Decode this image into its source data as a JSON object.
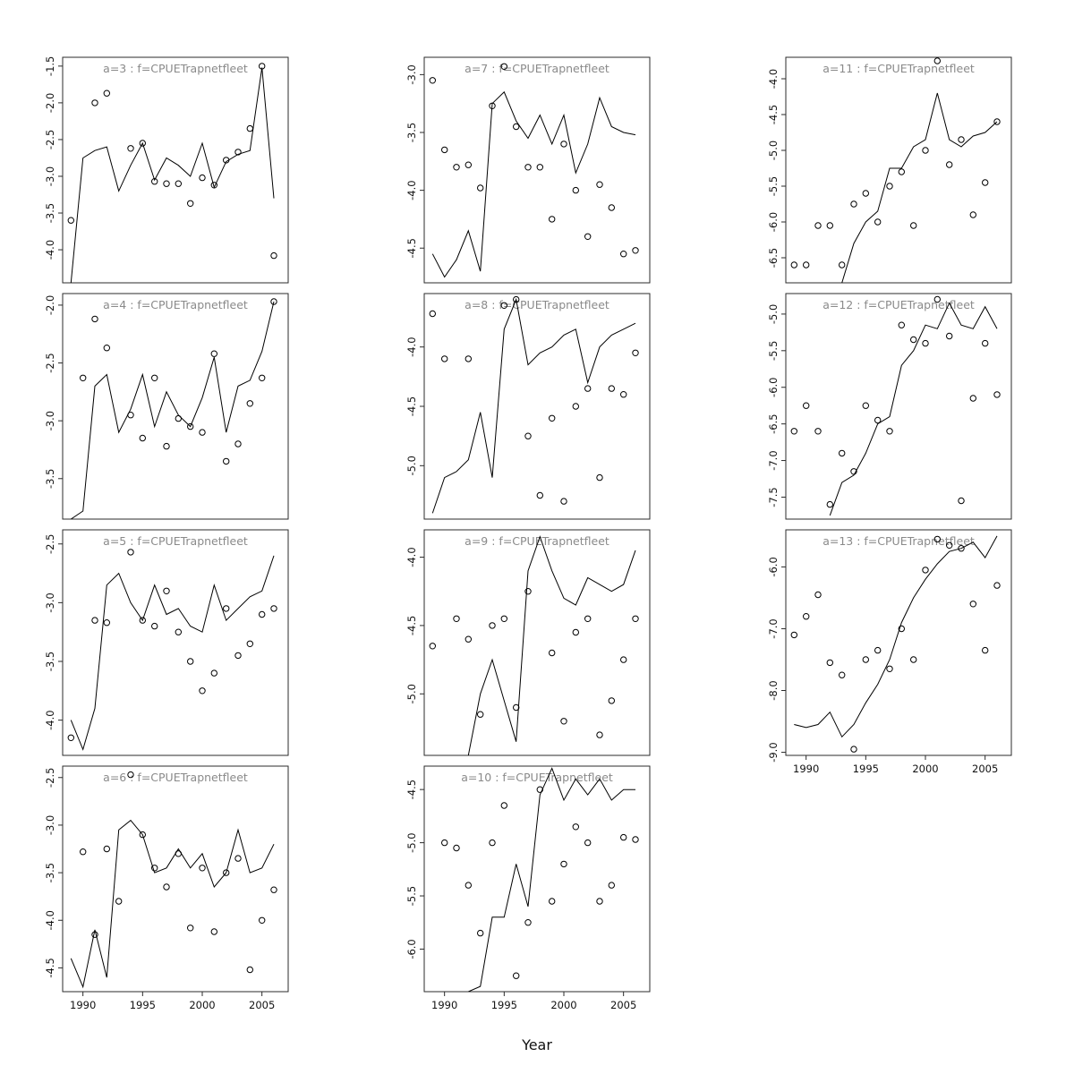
{
  "figure": {
    "xlabel": "Year",
    "xticks": [
      1990,
      1995,
      2000,
      2005
    ],
    "xlim": [
      1988.3,
      2007.2
    ],
    "colors": {
      "line": "#000000",
      "point": "#000000",
      "title": "#8a8a8a",
      "box": "#2b2b2b",
      "tick_text": "#111111"
    }
  },
  "chart_data": [
    {
      "id": "a3",
      "type": "scatter+line",
      "title": "a=3  :  f=CPUETrapnetfleet",
      "ylim": [
        -4.45,
        -1.38
      ],
      "yticks": [
        -4.0,
        -3.5,
        -3.0,
        -2.5,
        -2.0,
        -1.5
      ],
      "x_axis_labels": false,
      "line": {
        "x": [
          1989,
          1990,
          1991,
          1992,
          1993,
          1994,
          1995,
          1996,
          1997,
          1998,
          1999,
          2000,
          2001,
          2002,
          2003,
          2004,
          2005,
          2006
        ],
        "y": [
          -4.45,
          -2.75,
          -2.65,
          -2.6,
          -3.2,
          -2.85,
          -2.55,
          -3.05,
          -2.75,
          -2.85,
          -3.0,
          -2.55,
          -3.15,
          -2.8,
          -2.7,
          -2.65,
          -1.52,
          -3.3
        ]
      },
      "points": {
        "x": [
          1989,
          1991,
          1992,
          1994,
          1995,
          1996,
          1997,
          1998,
          1999,
          2000,
          2001,
          2002,
          2003,
          2004,
          2005,
          2006
        ],
        "y": [
          -3.6,
          -2.0,
          -1.87,
          -2.62,
          -2.55,
          -3.07,
          -3.1,
          -3.1,
          -3.37,
          -3.02,
          -3.12,
          -2.78,
          -2.67,
          -2.35,
          -1.5,
          -4.08
        ]
      }
    },
    {
      "id": "a4",
      "type": "scatter+line",
      "title": "a=4  :  f=CPUETrapnetfleet",
      "ylim": [
        -3.85,
        -1.9
      ],
      "yticks": [
        -3.5,
        -3.0,
        -2.5,
        -2.0
      ],
      "x_axis_labels": false,
      "line": {
        "x": [
          1989,
          1990,
          1991,
          1992,
          1993,
          1994,
          1995,
          1996,
          1997,
          1998,
          1999,
          2000,
          2001,
          2002,
          2003,
          2004,
          2005,
          2006
        ],
        "y": [
          -3.85,
          -3.78,
          -2.7,
          -2.6,
          -3.1,
          -2.9,
          -2.6,
          -3.05,
          -2.75,
          -2.95,
          -3.05,
          -2.8,
          -2.45,
          -3.1,
          -2.7,
          -2.65,
          -2.4,
          -1.97
        ]
      },
      "points": {
        "x": [
          1990,
          1991,
          1992,
          1994,
          1995,
          1996,
          1997,
          1998,
          1999,
          2000,
          2001,
          2002,
          2003,
          2004,
          2005,
          2006
        ],
        "y": [
          -2.63,
          -2.12,
          -2.37,
          -2.95,
          -3.15,
          -2.63,
          -3.22,
          -2.98,
          -3.05,
          -3.1,
          -2.42,
          -3.35,
          -3.2,
          -2.85,
          -2.63,
          -1.97
        ]
      }
    },
    {
      "id": "a5",
      "type": "scatter+line",
      "title": "a=5  :  f=CPUETrapnetfleet",
      "ylim": [
        -4.3,
        -2.38
      ],
      "yticks": [
        -4.0,
        -3.5,
        -3.0,
        -2.5
      ],
      "x_axis_labels": false,
      "line": {
        "x": [
          1989,
          1990,
          1991,
          1992,
          1993,
          1994,
          1995,
          1996,
          1997,
          1998,
          1999,
          2000,
          2001,
          2002,
          2003,
          2004,
          2005,
          2006
        ],
        "y": [
          -4.0,
          -4.25,
          -3.9,
          -2.85,
          -2.75,
          -3.0,
          -3.15,
          -2.85,
          -3.1,
          -3.05,
          -3.2,
          -3.25,
          -2.85,
          -3.15,
          -3.05,
          -2.95,
          -2.9,
          -2.6
        ]
      },
      "points": {
        "x": [
          1989,
          1991,
          1992,
          1994,
          1995,
          1996,
          1997,
          1998,
          1999,
          2000,
          2001,
          2002,
          2003,
          2004,
          2005,
          2006
        ],
        "y": [
          -4.15,
          -3.15,
          -3.17,
          -2.57,
          -3.15,
          -3.2,
          -2.9,
          -3.25,
          -3.5,
          -3.75,
          -3.6,
          -3.05,
          -3.45,
          -3.35,
          -3.1,
          -3.05
        ]
      }
    },
    {
      "id": "a6",
      "type": "scatter+line",
      "title": "a=6  :  f=CPUETrapnetfleet",
      "ylim": [
        -4.75,
        -2.38
      ],
      "yticks": [
        -4.5,
        -4.0,
        -3.5,
        -3.0,
        -2.5
      ],
      "x_axis_labels": true,
      "line": {
        "x": [
          1989,
          1990,
          1991,
          1992,
          1993,
          1994,
          1995,
          1996,
          1997,
          1998,
          1999,
          2000,
          2001,
          2002,
          2003,
          2004,
          2005,
          2006
        ],
        "y": [
          -4.4,
          -4.7,
          -4.1,
          -4.6,
          -3.05,
          -2.95,
          -3.1,
          -3.5,
          -3.45,
          -3.25,
          -3.45,
          -3.3,
          -3.65,
          -3.5,
          -3.05,
          -3.5,
          -3.45,
          -3.2
        ]
      },
      "points": {
        "x": [
          1990,
          1991,
          1992,
          1993,
          1994,
          1995,
          1996,
          1997,
          1998,
          1999,
          2000,
          2001,
          2002,
          2003,
          2004,
          2005,
          2006
        ],
        "y": [
          -3.28,
          -4.15,
          -3.25,
          -3.8,
          -2.47,
          -3.1,
          -3.45,
          -3.65,
          -3.3,
          -4.08,
          -3.45,
          -4.12,
          -3.5,
          -3.35,
          -4.52,
          -4.0,
          -3.68
        ]
      }
    },
    {
      "id": "a7",
      "type": "scatter+line",
      "title": "a=7  :  f=CPUETrapnetfleet",
      "ylim": [
        -4.8,
        -2.85
      ],
      "yticks": [
        -4.5,
        -4.0,
        -3.5,
        -3.0
      ],
      "x_axis_labels": false,
      "line": {
        "x": [
          1989,
          1990,
          1991,
          1992,
          1993,
          1994,
          1995,
          1996,
          1997,
          1998,
          1999,
          2000,
          2001,
          2002,
          2003,
          2004,
          2005,
          2006
        ],
        "y": [
          -4.55,
          -4.75,
          -4.6,
          -4.35,
          -4.7,
          -3.25,
          -3.15,
          -3.4,
          -3.55,
          -3.35,
          -3.6,
          -3.35,
          -3.85,
          -3.6,
          -3.2,
          -3.45,
          -3.5,
          -3.52
        ]
      },
      "points": {
        "x": [
          1989,
          1990,
          1991,
          1992,
          1993,
          1994,
          1995,
          1996,
          1997,
          1998,
          1999,
          2000,
          2001,
          2002,
          2003,
          2004,
          2005,
          2006
        ],
        "y": [
          -3.05,
          -3.65,
          -3.8,
          -3.78,
          -3.98,
          -3.27,
          -2.93,
          -3.45,
          -3.8,
          -3.8,
          -4.25,
          -3.6,
          -4.0,
          -4.4,
          -3.95,
          -4.15,
          -4.55,
          -4.52
        ]
      }
    },
    {
      "id": "a8",
      "type": "scatter+line",
      "title": "a=8  :  f=CPUETrapnetfleet",
      "ylim": [
        -5.45,
        -3.55
      ],
      "yticks": [
        -5.0,
        -4.5,
        -4.0
      ],
      "x_axis_labels": false,
      "line": {
        "x": [
          1989,
          1990,
          1991,
          1992,
          1993,
          1994,
          1995,
          1996,
          1997,
          1998,
          1999,
          2000,
          2001,
          2002,
          2003,
          2004,
          2005,
          2006
        ],
        "y": [
          -5.4,
          -5.1,
          -5.05,
          -4.95,
          -4.55,
          -5.1,
          -3.85,
          -3.6,
          -4.15,
          -4.05,
          -4.0,
          -3.9,
          -3.85,
          -4.3,
          -4.0,
          -3.9,
          -3.85,
          -3.8
        ]
      },
      "points": {
        "x": [
          1989,
          1990,
          1992,
          1995,
          1996,
          1997,
          1998,
          1999,
          2000,
          2001,
          2002,
          2003,
          2004,
          2005,
          2006
        ],
        "y": [
          -3.72,
          -4.1,
          -4.1,
          -3.65,
          -3.6,
          -4.75,
          -5.25,
          -4.6,
          -5.3,
          -4.5,
          -4.35,
          -5.1,
          -4.35,
          -4.4,
          -4.05
        ]
      }
    },
    {
      "id": "a9",
      "type": "scatter+line",
      "title": "a=9  :  f=CPUETrapnetfleet",
      "ylim": [
        -5.45,
        -3.8
      ],
      "yticks": [
        -5.0,
        -4.5,
        -4.0
      ],
      "x_axis_labels": false,
      "line": {
        "x": [
          1992,
          1993,
          1994,
          1995,
          1996,
          1997,
          1998,
          1999,
          2000,
          2001,
          2002,
          2003,
          2004,
          2005,
          2006
        ],
        "y": [
          -5.45,
          -5.0,
          -4.75,
          -5.05,
          -5.35,
          -4.1,
          -3.85,
          -4.1,
          -4.3,
          -4.35,
          -4.15,
          -4.2,
          -4.25,
          -4.2,
          -3.95
        ]
      },
      "points": {
        "x": [
          1989,
          1991,
          1992,
          1993,
          1994,
          1995,
          1996,
          1997,
          1999,
          2000,
          2001,
          2002,
          2003,
          2004,
          2005,
          2006
        ],
        "y": [
          -4.65,
          -4.45,
          -4.6,
          -5.15,
          -4.5,
          -4.45,
          -5.1,
          -4.25,
          -4.7,
          -5.2,
          -4.55,
          -4.45,
          -5.3,
          -5.05,
          -4.75,
          -4.45
        ]
      }
    },
    {
      "id": "a10",
      "type": "scatter+line",
      "title": "a=10  :  f=CPUETrapnetfleet",
      "ylim": [
        -6.4,
        -4.28
      ],
      "yticks": [
        -6.0,
        -5.5,
        -5.0,
        -4.5
      ],
      "x_axis_labels": true,
      "line": {
        "x": [
          1992,
          1993,
          1994,
          1995,
          1996,
          1997,
          1998,
          1999,
          2000,
          2001,
          2002,
          2003,
          2004,
          2005,
          2006
        ],
        "y": [
          -6.4,
          -6.35,
          -5.7,
          -5.7,
          -5.2,
          -5.6,
          -4.55,
          -4.3,
          -4.6,
          -4.4,
          -4.55,
          -4.4,
          -4.6,
          -4.5,
          -4.5
        ]
      },
      "points": {
        "x": [
          1990,
          1991,
          1992,
          1993,
          1994,
          1995,
          1996,
          1997,
          1998,
          1999,
          2000,
          2001,
          2002,
          2003,
          2004,
          2005,
          2006
        ],
        "y": [
          -5.0,
          -5.05,
          -5.4,
          -5.85,
          -5.0,
          -4.65,
          -6.25,
          -5.75,
          -4.5,
          -5.55,
          -5.2,
          -4.85,
          -5.0,
          -5.55,
          -5.4,
          -4.95,
          -4.97
        ]
      }
    },
    {
      "id": "a11",
      "type": "scatter+line",
      "title": "a=11  :  f=CPUETrapnetfleet",
      "ylim": [
        -6.85,
        -3.7
      ],
      "yticks": [
        -6.5,
        -6.0,
        -5.5,
        -5.0,
        -4.5,
        -4.0
      ],
      "x_axis_labels": false,
      "line": {
        "x": [
          1993,
          1994,
          1995,
          1996,
          1997,
          1998,
          1999,
          2000,
          2001,
          2002,
          2003,
          2004,
          2005,
          2006
        ],
        "y": [
          -6.85,
          -6.3,
          -6.0,
          -5.85,
          -5.25,
          -5.25,
          -4.95,
          -4.85,
          -4.2,
          -4.85,
          -4.95,
          -4.8,
          -4.75,
          -4.6
        ]
      },
      "points": {
        "x": [
          1989,
          1990,
          1991,
          1992,
          1993,
          1994,
          1995,
          1996,
          1997,
          1998,
          1999,
          2000,
          2001,
          2002,
          2003,
          2004,
          2005,
          2006
        ],
        "y": [
          -6.6,
          -6.6,
          -6.05,
          -6.05,
          -6.6,
          -5.75,
          -5.6,
          -6.0,
          -5.5,
          -5.3,
          -6.05,
          -5.0,
          -3.75,
          -5.2,
          -4.85,
          -5.9,
          -5.45,
          -4.6
        ]
      }
    },
    {
      "id": "a12",
      "type": "scatter+line",
      "title": "a=12  :  f=CPUETrapnetfleet",
      "ylim": [
        -7.8,
        -4.72
      ],
      "yticks": [
        -7.5,
        -7.0,
        -6.5,
        -6.0,
        -5.5,
        -5.0
      ],
      "x_axis_labels": false,
      "line": {
        "x": [
          1992,
          1993,
          1994,
          1995,
          1996,
          1997,
          1998,
          1999,
          2000,
          2001,
          2002,
          2003,
          2004,
          2005,
          2006
        ],
        "y": [
          -7.75,
          -7.3,
          -7.2,
          -6.9,
          -6.5,
          -6.4,
          -5.7,
          -5.5,
          -5.15,
          -5.2,
          -4.85,
          -5.15,
          -5.2,
          -4.9,
          -5.2
        ]
      },
      "points": {
        "x": [
          1989,
          1990,
          1991,
          1992,
          1993,
          1994,
          1995,
          1996,
          1997,
          1998,
          1999,
          2000,
          2001,
          2002,
          2003,
          2004,
          2005,
          2006
        ],
        "y": [
          -6.6,
          -6.25,
          -6.6,
          -7.6,
          -6.9,
          -7.15,
          -6.25,
          -6.45,
          -6.6,
          -5.15,
          -5.35,
          -5.4,
          -4.8,
          -5.3,
          -7.55,
          -6.15,
          -5.4,
          -6.1
        ]
      }
    },
    {
      "id": "a13",
      "type": "scatter+line",
      "title": "a=13  :  f=CPUETrapnetfleet",
      "ylim": [
        -9.05,
        -5.4
      ],
      "yticks": [
        -9.0,
        -8.0,
        -7.0,
        -6.0
      ],
      "x_axis_labels": true,
      "line": {
        "x": [
          1989,
          1990,
          1991,
          1992,
          1993,
          1994,
          1995,
          1996,
          1997,
          1998,
          1999,
          2000,
          2001,
          2002,
          2003,
          2004,
          2005,
          2006
        ],
        "y": [
          -8.55,
          -8.6,
          -8.55,
          -8.35,
          -8.75,
          -8.55,
          -8.2,
          -7.9,
          -7.5,
          -6.9,
          -6.5,
          -6.2,
          -5.95,
          -5.75,
          -5.7,
          -5.6,
          -5.85,
          -5.5
        ]
      },
      "points": {
        "x": [
          1989,
          1990,
          1991,
          1992,
          1993,
          1994,
          1995,
          1996,
          1997,
          1998,
          1999,
          2000,
          2001,
          2002,
          2003,
          2004,
          2005,
          2006
        ],
        "y": [
          -7.1,
          -6.8,
          -6.45,
          -7.55,
          -7.75,
          -8.95,
          -7.5,
          -7.35,
          -7.65,
          -7.0,
          -7.5,
          -6.05,
          -5.55,
          -5.65,
          -5.7,
          -6.6,
          -7.35,
          -6.3
        ]
      }
    }
  ]
}
